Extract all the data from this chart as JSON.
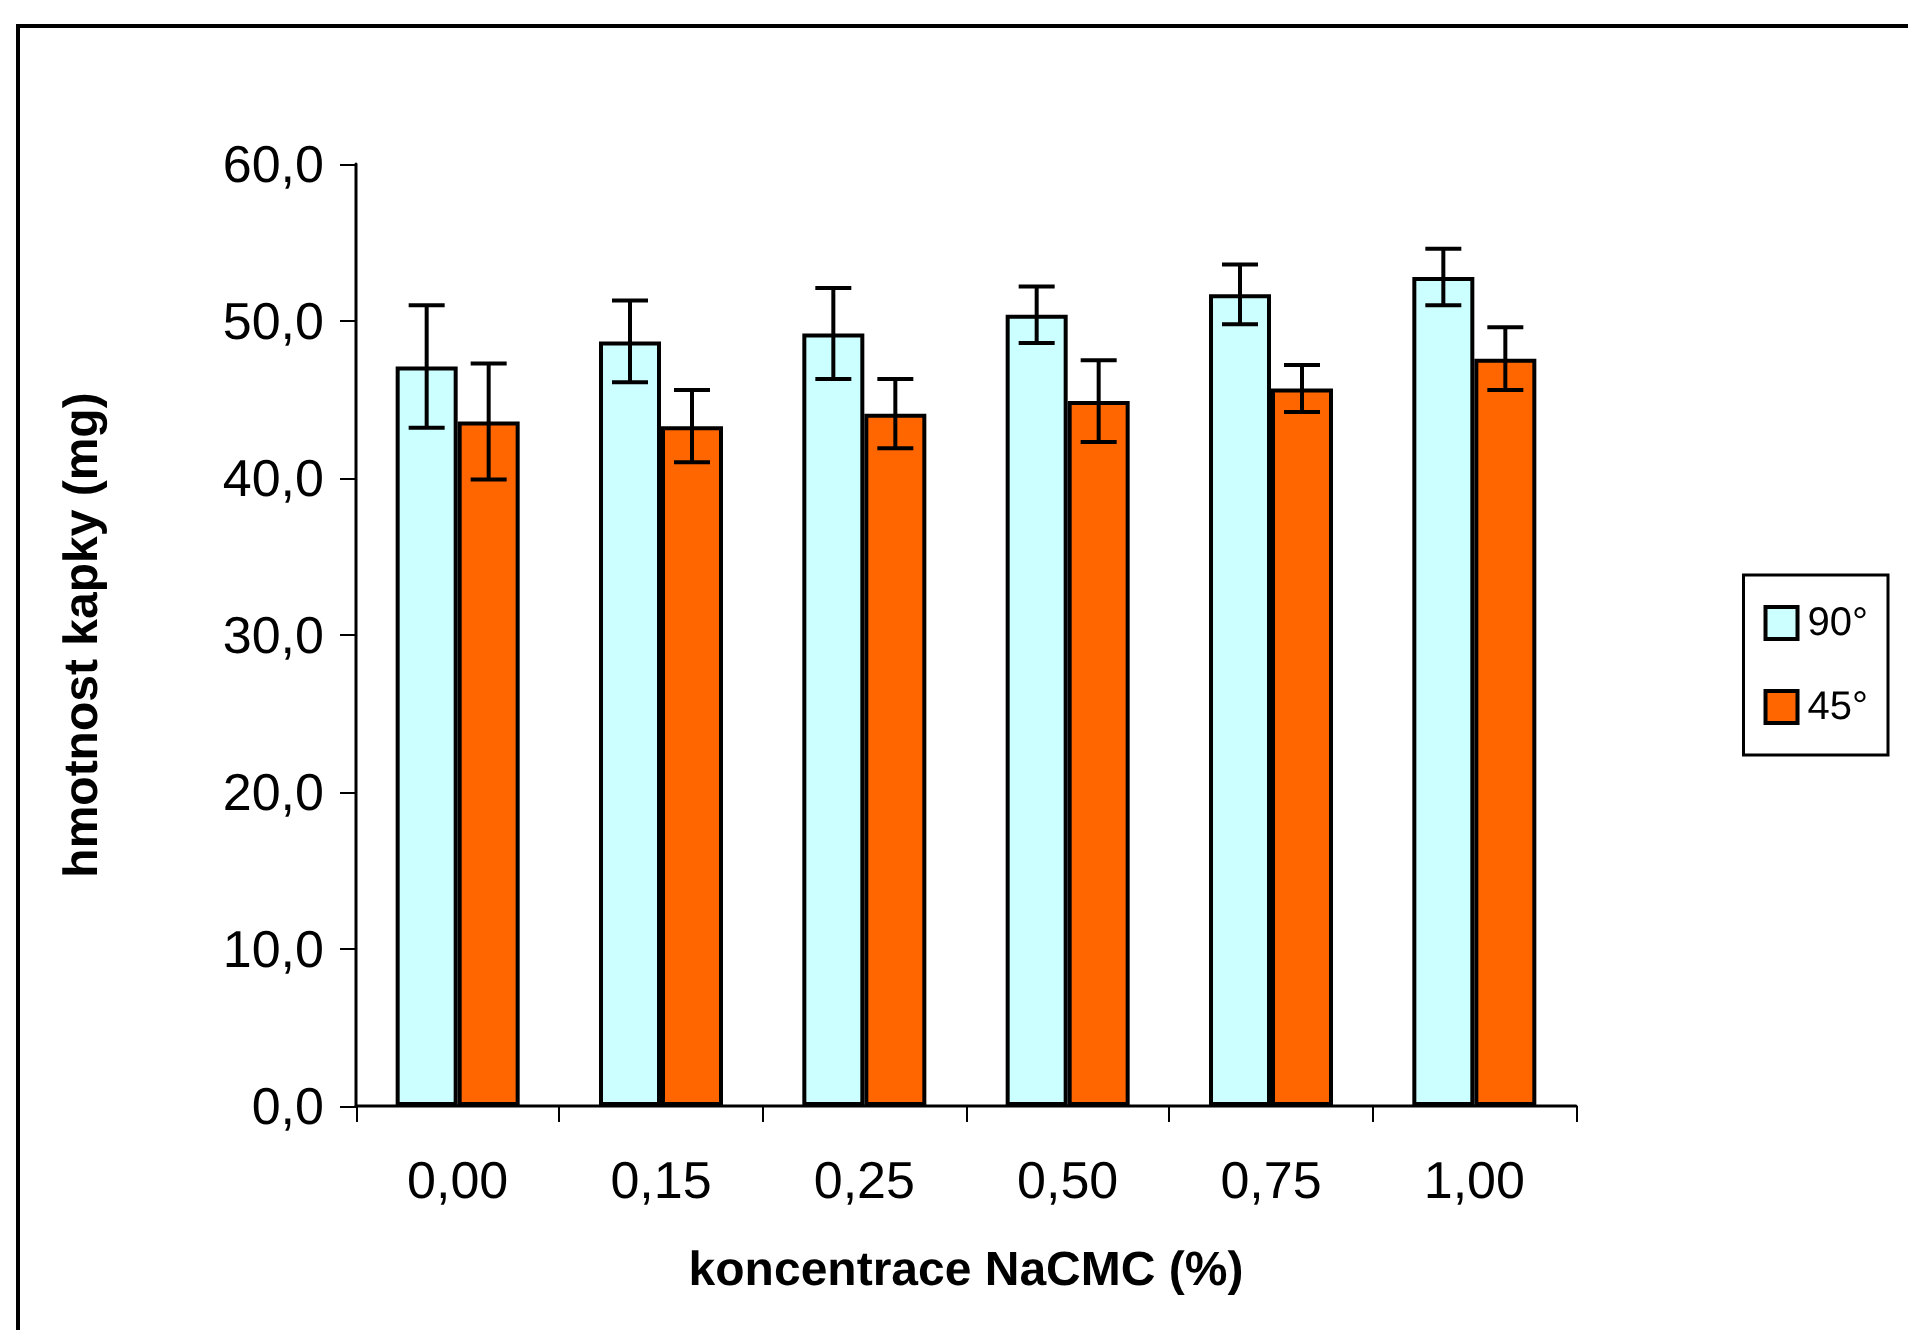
{
  "chart_data": {
    "type": "bar",
    "xlabel": "koncentrace NaCMC (%)",
    "ylabel": "hmotnost kapky (mg)",
    "categories": [
      "0,00",
      "0,15",
      "0,25",
      "0,50",
      "0,75",
      "1,00"
    ],
    "series": [
      {
        "name": "90°",
        "color": "#ccffff",
        "values": [
          47.1,
          48.7,
          49.2,
          50.4,
          51.7,
          52.8
        ],
        "errors": [
          3.9,
          2.6,
          2.9,
          1.8,
          1.9,
          1.8
        ]
      },
      {
        "name": "45°",
        "color": "#ff6600",
        "values": [
          43.6,
          43.3,
          44.1,
          44.9,
          45.7,
          47.6
        ],
        "errors": [
          3.7,
          2.3,
          2.2,
          2.6,
          1.5,
          2.0
        ]
      }
    ],
    "ylim": [
      0,
      60
    ],
    "yticks": [
      {
        "value": 0,
        "label": "0,0"
      },
      {
        "value": 10,
        "label": "10,0"
      },
      {
        "value": 20,
        "label": "20,0"
      },
      {
        "value": 30,
        "label": "30,0"
      },
      {
        "value": 40,
        "label": "40,0"
      },
      {
        "value": 50,
        "label": "50,0"
      },
      {
        "value": 60,
        "label": "60,0"
      }
    ],
    "grid": false,
    "legend": "right"
  }
}
